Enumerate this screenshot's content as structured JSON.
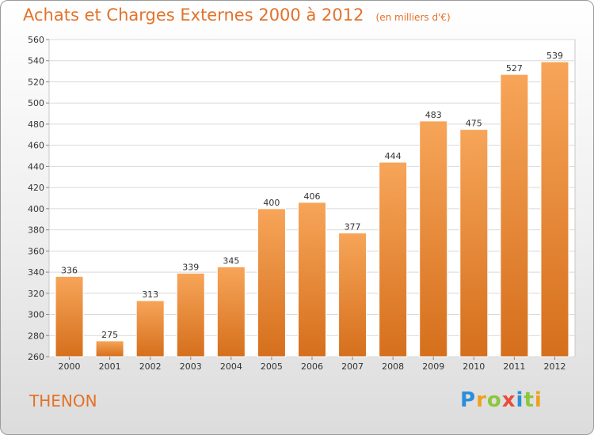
{
  "header": {
    "title": "Achats et Charges Externes 2000 à 2012",
    "unit": "(en milliers d'€)"
  },
  "footer": {
    "commune": "THENON",
    "brand_text": "Proxiti"
  },
  "colors": {
    "accent": "#e2722a",
    "bar_top": "#f7a559",
    "bar_bottom": "#d56f1c"
  },
  "chart_data": {
    "type": "bar",
    "title": "Achats et Charges Externes 2000 à 2012",
    "subtitle": "(en milliers d'€)",
    "categories": [
      "2000",
      "2001",
      "2002",
      "2003",
      "2004",
      "2005",
      "2006",
      "2007",
      "2008",
      "2009",
      "2010",
      "2011",
      "2012"
    ],
    "values": [
      336,
      275,
      313,
      339,
      345,
      400,
      406,
      377,
      444,
      483,
      475,
      527,
      539
    ],
    "ylim": [
      260,
      560
    ],
    "yticks": [
      260,
      280,
      300,
      320,
      340,
      360,
      380,
      400,
      420,
      440,
      460,
      480,
      500,
      520,
      540,
      560
    ],
    "grid": true,
    "data_labels": true
  }
}
